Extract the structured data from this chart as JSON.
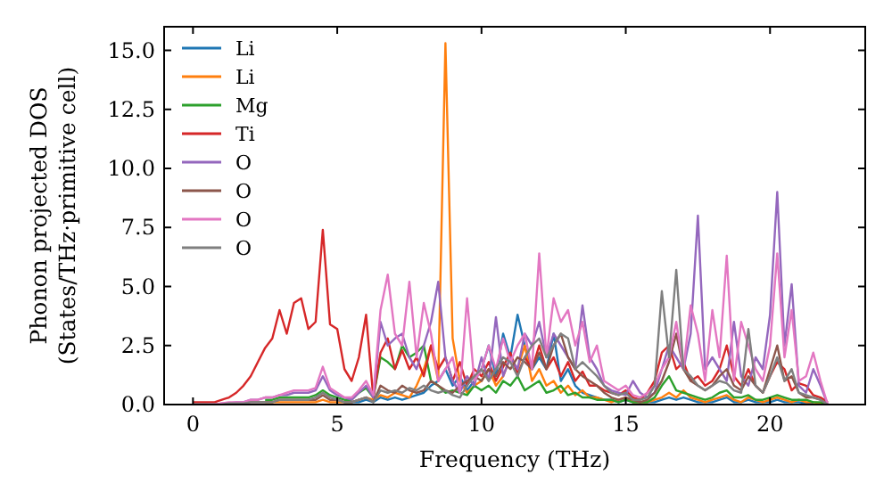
{
  "chart_data": {
    "type": "line",
    "xlabel": "Frequency (THz)",
    "ylabel": "Phonon projected DOS\n(States/THz·primitive cell)",
    "xlim": [
      -1,
      23.3
    ],
    "xticks": [
      0,
      5,
      10,
      15,
      20
    ],
    "ylim": [
      0,
      16
    ],
    "yticks": [
      {
        "value": 0,
        "label": "0.0"
      },
      {
        "value": 2.5,
        "label": "2.5"
      },
      {
        "value": 5,
        "label": "5.0"
      },
      {
        "value": 7.5,
        "label": "7.5"
      },
      {
        "value": 10,
        "label": "10.0"
      },
      {
        "value": 12.5,
        "label": "12.5"
      },
      {
        "value": 15,
        "label": "15.0"
      }
    ],
    "grid": false,
    "legend": "top left",
    "marker": "none",
    "line_style": "solid",
    "x": [
      0,
      0.25,
      0.5,
      0.75,
      1,
      1.25,
      1.5,
      1.75,
      2,
      2.25,
      2.5,
      2.75,
      3,
      3.25,
      3.5,
      3.75,
      4,
      4.25,
      4.5,
      4.75,
      5,
      5.25,
      5.5,
      5.75,
      6,
      6.25,
      6.5,
      6.75,
      7,
      7.25,
      7.5,
      7.75,
      8,
      8.25,
      8.5,
      8.75,
      9,
      9.25,
      9.5,
      9.75,
      10,
      10.25,
      10.5,
      10.75,
      11,
      11.25,
      11.5,
      11.75,
      12,
      12.25,
      12.5,
      12.75,
      13,
      13.25,
      13.5,
      13.75,
      14,
      14.25,
      14.5,
      14.75,
      15,
      15.25,
      15.5,
      15.75,
      16,
      16.25,
      16.5,
      16.75,
      17,
      17.25,
      17.5,
      17.75,
      18,
      18.25,
      18.5,
      18.75,
      19,
      19.25,
      19.5,
      19.75,
      20,
      20.25,
      20.5,
      20.75,
      21,
      21.25,
      21.5,
      21.75,
      22
    ],
    "series": [
      {
        "name": "Li",
        "color": "#1f77b4",
        "values": [
          null,
          null,
          null,
          null,
          null,
          null,
          null,
          null,
          null,
          null,
          null,
          null,
          null,
          null,
          null,
          null,
          null,
          null,
          null,
          null,
          null,
          0.1,
          0.1,
          0.1,
          0.2,
          0.1,
          0.3,
          0.2,
          0.3,
          0.2,
          0.3,
          0.4,
          0.5,
          0.8,
          1.0,
          1.5,
          0.8,
          1.2,
          0.6,
          1.0,
          1.5,
          2.5,
          1.2,
          3.0,
          2.0,
          3.8,
          2.5,
          1.5,
          2.0,
          1.5,
          3.0,
          1.0,
          1.5,
          0.8,
          0.5,
          0.4,
          0.3,
          0.2,
          0.2,
          0.1,
          0.2,
          0.1,
          0.1,
          0.1,
          0.1,
          0.2,
          0.3,
          0.2,
          0.3,
          0.2,
          0.1,
          0.1,
          0.1,
          0.2,
          0.3,
          0.1,
          0.1,
          0.2,
          0.1,
          0.1,
          0.1,
          0.2,
          0.1,
          0.1,
          0.1,
          0.05,
          0.05,
          null,
          null
        ]
      },
      {
        "name": "Li",
        "color": "#ff7f0e",
        "values": [
          null,
          null,
          null,
          null,
          null,
          null,
          null,
          null,
          null,
          null,
          0.1,
          0.1,
          0.1,
          0.1,
          0.1,
          0.1,
          0.1,
          0.1,
          0.2,
          0.1,
          0.1,
          0.1,
          0.1,
          0.2,
          0.3,
          0.2,
          0.4,
          0.3,
          0.5,
          0.4,
          0.3,
          0.8,
          1.5,
          2.5,
          1.0,
          15.3,
          2.8,
          1.0,
          0.5,
          0.8,
          1.0,
          1.5,
          0.8,
          1.2,
          2.0,
          1.5,
          2.5,
          1.0,
          1.5,
          0.8,
          1.0,
          0.5,
          0.8,
          0.4,
          0.6,
          0.3,
          0.3,
          0.2,
          0.1,
          0.2,
          0.3,
          0.1,
          0.1,
          0.1,
          0.2,
          0.3,
          0.5,
          0.3,
          0.6,
          0.3,
          0.2,
          0.1,
          0.2,
          0.3,
          0.4,
          0.2,
          0.1,
          0.3,
          0.2,
          0.1,
          0.2,
          0.3,
          0.2,
          0.1,
          0.2,
          0.1,
          0.1,
          0.05,
          0
        ]
      },
      {
        "name": "Mg",
        "color": "#2ca02c",
        "values": [
          null,
          null,
          null,
          null,
          null,
          null,
          null,
          null,
          null,
          null,
          0.2,
          0.2,
          0.3,
          0.3,
          0.3,
          0.3,
          0.3,
          0.4,
          0.6,
          0.4,
          0.3,
          0.2,
          0.2,
          0.5,
          0.7,
          0.3,
          2.0,
          1.8,
          1.5,
          2.5,
          2.0,
          2.2,
          2.5,
          1.0,
          0.8,
          0.5,
          0.6,
          0.5,
          0.4,
          0.8,
          0.6,
          0.8,
          0.5,
          1.0,
          0.8,
          1.2,
          0.6,
          0.8,
          1.0,
          0.5,
          0.6,
          0.8,
          0.4,
          0.5,
          0.3,
          0.3,
          0.2,
          0.2,
          0.2,
          0.1,
          0.2,
          0.1,
          0.1,
          0.1,
          0.3,
          0.8,
          1.2,
          0.6,
          0.5,
          0.4,
          0.3,
          0.2,
          0.3,
          0.5,
          0.6,
          0.3,
          0.3,
          0.4,
          0.2,
          0.2,
          0.3,
          0.4,
          0.3,
          0.2,
          0.2,
          0.2,
          0.1,
          0.1,
          0
        ]
      },
      {
        "name": "Ti",
        "color": "#d62728",
        "values": [
          0.1,
          0.1,
          0.1,
          0.1,
          0.2,
          0.3,
          0.5,
          0.8,
          1.2,
          1.8,
          2.4,
          2.8,
          4.0,
          3.0,
          4.3,
          4.5,
          3.2,
          3.5,
          7.4,
          3.4,
          3.2,
          1.5,
          1.0,
          2.0,
          3.8,
          0.3,
          2.2,
          2.8,
          1.5,
          2.3,
          1.5,
          2.0,
          1.2,
          2.5,
          1.5,
          2.0,
          1.0,
          1.8,
          0.8,
          1.5,
          1.2,
          1.8,
          1.0,
          1.6,
          2.2,
          1.3,
          2.0,
          1.5,
          2.5,
          1.5,
          2.0,
          1.2,
          1.8,
          1.0,
          1.4,
          0.8,
          0.8,
          0.6,
          0.5,
          0.4,
          0.6,
          0.3,
          0.2,
          0.5,
          1.0,
          2.2,
          2.5,
          1.5,
          1.8,
          1.0,
          1.2,
          0.8,
          1.0,
          1.5,
          2.5,
          1.2,
          0.8,
          1.5,
          0.8,
          0.5,
          1.2,
          1.8,
          1.5,
          0.6,
          0.9,
          0.8,
          0.4,
          0.3,
          0.1
        ]
      },
      {
        "name": "O",
        "color": "#9467bd",
        "values": [
          0,
          0,
          0,
          0,
          0.05,
          0.05,
          0.1,
          0.1,
          0.2,
          0.2,
          0.3,
          0.3,
          0.4,
          0.4,
          0.5,
          0.5,
          0.5,
          0.6,
          1.2,
          0.6,
          0.4,
          0.3,
          0.2,
          0.5,
          0.8,
          0.3,
          3.5,
          2.5,
          2.8,
          3.0,
          2.0,
          1.5,
          2.5,
          3.5,
          5.2,
          2.0,
          1.0,
          0.5,
          1.2,
          0.8,
          2.0,
          1.0,
          3.7,
          1.2,
          2.0,
          1.5,
          3.0,
          2.5,
          3.5,
          2.0,
          3.0,
          2.5,
          2.0,
          1.5,
          4.2,
          2.0,
          1.5,
          0.8,
          0.6,
          0.5,
          0.4,
          1.0,
          0.5,
          0.3,
          0.5,
          1.5,
          2.5,
          2.0,
          1.5,
          3.0,
          8.0,
          1.5,
          2.0,
          1.5,
          1.0,
          3.5,
          1.2,
          0.8,
          2.0,
          1.5,
          3.8,
          9.0,
          2.5,
          5.1,
          0.8,
          0.5,
          1.5,
          0.8,
          0
        ]
      },
      {
        "name": "O",
        "color": "#8c564b",
        "values": [
          0,
          0,
          0,
          0,
          0,
          0.05,
          0.05,
          0.05,
          0.1,
          0.1,
          0.1,
          0.1,
          0.2,
          0.2,
          0.2,
          0.2,
          0.2,
          0.2,
          0.4,
          0.2,
          0.2,
          0.1,
          0.1,
          0.2,
          0.3,
          0.1,
          0.8,
          0.6,
          0.5,
          0.8,
          0.6,
          0.5,
          0.6,
          1.0,
          0.8,
          0.6,
          0.5,
          0.8,
          1.0,
          1.2,
          1.0,
          1.5,
          1.2,
          1.8,
          1.5,
          2.0,
          1.8,
          1.5,
          2.2,
          1.5,
          2.5,
          3.0,
          2.0,
          1.5,
          1.2,
          1.0,
          0.8,
          0.5,
          0.3,
          0.2,
          0.3,
          0.2,
          0.1,
          0.2,
          0.5,
          1.0,
          1.8,
          3.0,
          1.5,
          1.0,
          0.8,
          0.6,
          0.8,
          1.2,
          1.5,
          0.8,
          0.6,
          1.2,
          0.8,
          0.5,
          1.5,
          2.5,
          1.0,
          1.2,
          0.5,
          0.3,
          0.3,
          0.2,
          0
        ]
      },
      {
        "name": "O",
        "color": "#e377c2",
        "values": [
          null,
          null,
          0,
          0,
          0.05,
          0.1,
          0.1,
          0.1,
          0.2,
          0.2,
          0.3,
          0.3,
          0.4,
          0.5,
          0.6,
          0.6,
          0.6,
          0.7,
          1.6,
          0.7,
          0.5,
          0.3,
          0.3,
          0.6,
          1.0,
          0.4,
          4.0,
          5.5,
          3.0,
          2.5,
          5.2,
          2.0,
          4.3,
          3.0,
          1.0,
          1.5,
          2.0,
          0.5,
          4.5,
          1.0,
          1.5,
          2.5,
          1.5,
          2.8,
          1.8,
          2.5,
          3.0,
          1.5,
          6.4,
          2.0,
          4.5,
          3.5,
          4.0,
          2.5,
          3.5,
          1.8,
          2.5,
          1.0,
          0.8,
          0.6,
          0.8,
          0.4,
          0.3,
          0.5,
          0.8,
          1.5,
          2.0,
          3.5,
          1.5,
          4.2,
          3.0,
          1.0,
          4.0,
          2.0,
          6.3,
          1.0,
          3.5,
          2.5,
          1.5,
          1.0,
          2.5,
          6.4,
          2.0,
          4.0,
          1.0,
          1.2,
          2.2,
          1.0,
          0
        ]
      },
      {
        "name": "O",
        "color": "#7f7f7f",
        "values": [
          0,
          0,
          0,
          0,
          0,
          0.05,
          0.05,
          0.05,
          0.1,
          0.1,
          0.1,
          0.1,
          0.2,
          0.2,
          0.2,
          0.2,
          0.2,
          0.3,
          0.5,
          0.3,
          0.2,
          0.1,
          0.1,
          0.2,
          0.3,
          0.1,
          0.6,
          0.5,
          0.6,
          0.5,
          0.7,
          0.6,
          0.8,
          0.6,
          0.5,
          0.6,
          0.4,
          0.3,
          0.8,
          1.2,
          1.5,
          1.0,
          1.5,
          2.0,
          1.8,
          1.2,
          2.0,
          2.5,
          2.8,
          2.0,
          2.5,
          3.0,
          2.8,
          1.5,
          1.8,
          1.5,
          1.2,
          0.8,
          0.5,
          0.4,
          0.5,
          0.2,
          0.2,
          0.3,
          0.8,
          4.8,
          2.0,
          5.7,
          1.5,
          1.2,
          0.8,
          0.6,
          0.8,
          1.0,
          0.9,
          0.6,
          0.5,
          3.2,
          0.8,
          0.5,
          1.2,
          2.0,
          1.0,
          1.5,
          0.5,
          0.4,
          0.3,
          0.2,
          0
        ]
      }
    ]
  }
}
